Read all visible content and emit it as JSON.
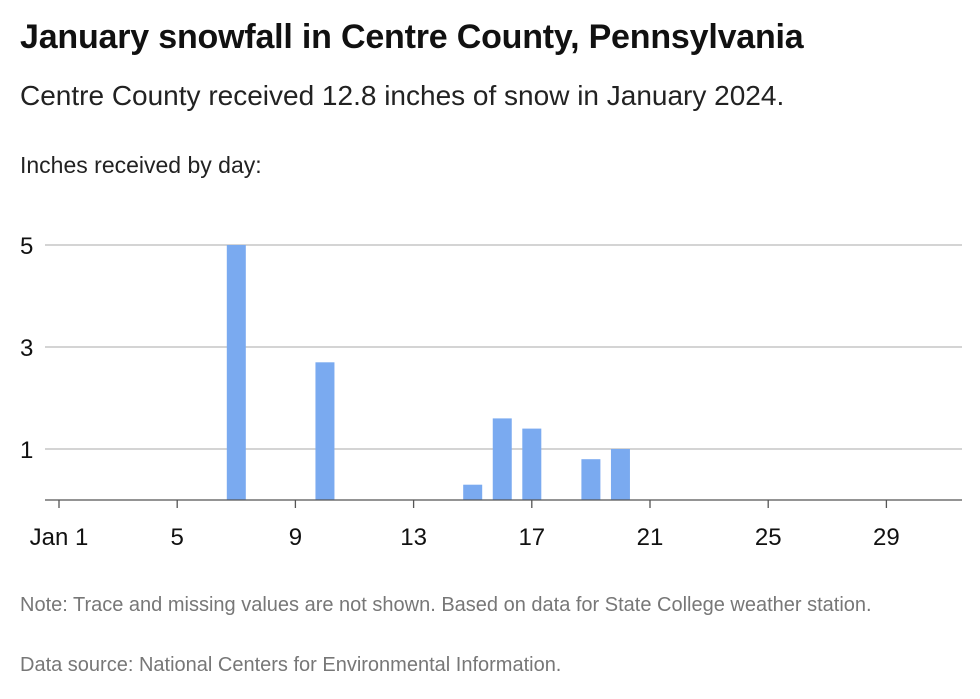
{
  "title": "January snowfall in Centre County, Pennsylvania",
  "subtitle": "Centre County received 12.8 inches of snow in January 2024.",
  "ylabel": "Inches received by day:",
  "note": "Note: Trace and missing values are not shown. Based on data for State College weather station.",
  "source": "Data source: National Centers for Environmental Information.",
  "colors": {
    "bar": "#7aaaf0",
    "grid": "#bbbbbb",
    "axis": "#555555"
  },
  "chart_data": {
    "type": "bar",
    "title": "January snowfall in Centre County, Pennsylvania",
    "ylabel": "Inches received by day:",
    "x_tick_labels": [
      "Jan 1",
      "5",
      "9",
      "13",
      "17",
      "21",
      "25",
      "29"
    ],
    "x_ticks": [
      1,
      5,
      9,
      13,
      17,
      21,
      25,
      29
    ],
    "y_ticks": [
      1,
      3,
      5
    ],
    "xlim": [
      0.5,
      31.5
    ],
    "ylim": [
      0,
      5
    ],
    "grid": true,
    "series": [
      {
        "days": [
          7,
          10,
          15,
          16,
          17,
          19,
          20
        ],
        "values": [
          5.0,
          2.7,
          0.3,
          1.6,
          1.4,
          0.8,
          1.0
        ]
      }
    ]
  }
}
